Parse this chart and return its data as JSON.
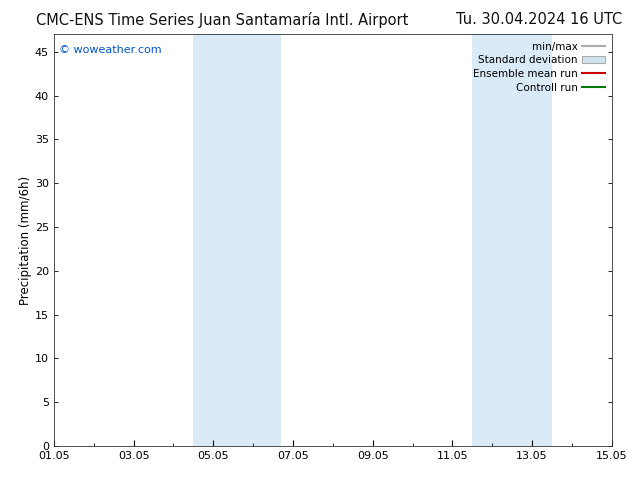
{
  "title_left": "CMC-ENS Time Series Juan Santamaría Intl. Airport",
  "title_right": "Tu. 30.04.2024 16 UTC",
  "ylabel": "Precipitation (mm/6h)",
  "watermark": "© woweather.com",
  "watermark_color": "#0055cc",
  "xlim_start": 0,
  "xlim_end": 14,
  "ylim_min": 0,
  "ylim_max": 47,
  "yticks": [
    0,
    5,
    10,
    15,
    20,
    25,
    30,
    35,
    40,
    45
  ],
  "xtick_labels": [
    "01.05",
    "03.05",
    "05.05",
    "07.05",
    "09.05",
    "11.05",
    "13.05",
    "15.05"
  ],
  "xtick_positions": [
    0,
    2,
    4,
    6,
    8,
    10,
    12,
    14
  ],
  "shaded_bands": [
    {
      "x_start": 3.5,
      "x_end": 5.7,
      "color": "#daeaf7"
    },
    {
      "x_start": 10.5,
      "x_end": 12.5,
      "color": "#daeaf7"
    }
  ],
  "legend_items": [
    {
      "label": "min/max",
      "type": "line",
      "color": "#aaaaaa",
      "lw": 1.5
    },
    {
      "label": "Standard deviation",
      "type": "patch",
      "facecolor": "#d0e4f0",
      "edgecolor": "#aaaaaa"
    },
    {
      "label": "Ensemble mean run",
      "type": "line",
      "color": "#cc0000",
      "lw": 1.5
    },
    {
      "label": "Controll run",
      "type": "line",
      "color": "#007700",
      "lw": 1.5
    }
  ],
  "bg_color": "#ffffff",
  "plot_bg_color": "#ffffff",
  "grid_color": "#cccccc",
  "title_fontsize": 10.5,
  "axis_label_fontsize": 8.5,
  "tick_fontsize": 8,
  "legend_fontsize": 7.5
}
